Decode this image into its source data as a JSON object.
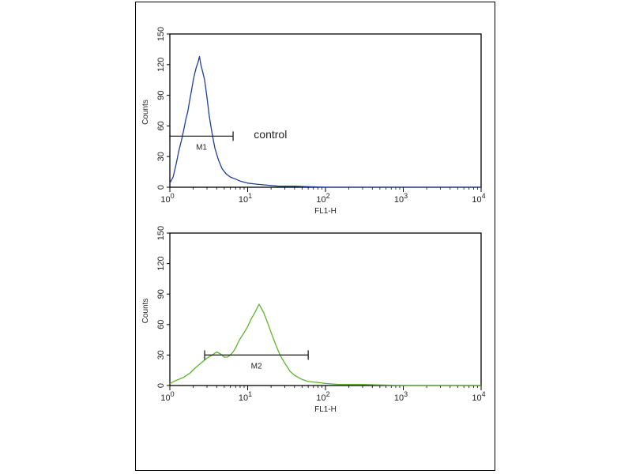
{
  "chart_data": [
    {
      "type": "histogram",
      "panel": "top",
      "xlabel": "FL1-H",
      "ylabel": "Counts",
      "x_scale": "log",
      "xlim": [
        1,
        10000
      ],
      "ylim": [
        0,
        150
      ],
      "x_ticks": [
        {
          "base": "10",
          "exp": "0",
          "value": 1
        },
        {
          "base": "10",
          "exp": "1",
          "value": 10
        },
        {
          "base": "10",
          "exp": "2",
          "value": 100
        },
        {
          "base": "10",
          "exp": "3",
          "value": 1000
        },
        {
          "base": "10",
          "exp": "4",
          "value": 10000
        }
      ],
      "y_ticks": [
        "0",
        "30",
        "60",
        "90",
        "120",
        "150"
      ],
      "series": [
        {
          "color": "#1f3f9a",
          "points": [
            [
              1.0,
              4
            ],
            [
              1.1,
              10
            ],
            [
              1.2,
              22
            ],
            [
              1.3,
              35
            ],
            [
              1.4,
              45
            ],
            [
              1.5,
              55
            ],
            [
              1.6,
              66
            ],
            [
              1.7,
              74
            ],
            [
              1.8,
              85
            ],
            [
              1.9,
              95
            ],
            [
              2.0,
              105
            ],
            [
              2.1,
              112
            ],
            [
              2.2,
              118
            ],
            [
              2.3,
              122
            ],
            [
              2.4,
              128
            ],
            [
              2.5,
              120
            ],
            [
              2.6,
              115
            ],
            [
              2.8,
              105
            ],
            [
              3.0,
              88
            ],
            [
              3.2,
              70
            ],
            [
              3.5,
              52
            ],
            [
              3.8,
              38
            ],
            [
              4.2,
              27
            ],
            [
              4.7,
              18
            ],
            [
              5.3,
              13
            ],
            [
              6.0,
              10
            ],
            [
              7.0,
              8
            ],
            [
              8.0,
              6
            ],
            [
              10,
              4
            ],
            [
              13,
              3
            ],
            [
              18,
              2
            ],
            [
              25,
              1
            ],
            [
              40,
              1
            ],
            [
              100,
              0
            ],
            [
              1000,
              0
            ],
            [
              10000,
              0
            ]
          ]
        }
      ],
      "gate": {
        "label": "M1",
        "x1": 1,
        "x2": 6.5,
        "y": 50
      },
      "annotation": {
        "text": "control",
        "x": 12,
        "y": 48
      }
    },
    {
      "type": "histogram",
      "panel": "bottom",
      "xlabel": "FL1-H",
      "ylabel": "Counts",
      "x_scale": "log",
      "xlim": [
        1,
        10000
      ],
      "ylim": [
        0,
        150
      ],
      "x_ticks": [
        {
          "base": "10",
          "exp": "0",
          "value": 1
        },
        {
          "base": "10",
          "exp": "1",
          "value": 10
        },
        {
          "base": "10",
          "exp": "2",
          "value": 100
        },
        {
          "base": "10",
          "exp": "3",
          "value": 1000
        },
        {
          "base": "10",
          "exp": "4",
          "value": 10000
        }
      ],
      "y_ticks": [
        "0",
        "30",
        "60",
        "90",
        "120",
        "150"
      ],
      "series": [
        {
          "color": "#5ab52a",
          "points": [
            [
              1.0,
              2
            ],
            [
              1.2,
              5
            ],
            [
              1.5,
              8
            ],
            [
              1.8,
              12
            ],
            [
              2.1,
              17
            ],
            [
              2.5,
              22
            ],
            [
              3.0,
              27
            ],
            [
              3.5,
              30
            ],
            [
              4.0,
              33
            ],
            [
              4.5,
              31
            ],
            [
              5.0,
              28
            ],
            [
              5.5,
              28
            ],
            [
              6.0,
              30
            ],
            [
              6.5,
              33
            ],
            [
              7.0,
              37
            ],
            [
              7.5,
              42
            ],
            [
              8.0,
              46
            ],
            [
              9.0,
              52
            ],
            [
              10,
              58
            ],
            [
              11,
              65
            ],
            [
              12,
              70
            ],
            [
              13,
              75
            ],
            [
              14,
              80
            ],
            [
              15,
              76
            ],
            [
              16,
              72
            ],
            [
              18,
              62
            ],
            [
              20,
              52
            ],
            [
              23,
              40
            ],
            [
              26,
              30
            ],
            [
              30,
              22
            ],
            [
              35,
              14
            ],
            [
              40,
              10
            ],
            [
              50,
              6
            ],
            [
              60,
              4
            ],
            [
              80,
              3
            ],
            [
              100,
              2
            ],
            [
              150,
              1
            ],
            [
              300,
              1
            ],
            [
              1000,
              0
            ],
            [
              10000,
              0
            ]
          ]
        }
      ],
      "gate": {
        "label": "M2",
        "x1": 2.8,
        "x2": 60,
        "y": 30
      }
    }
  ]
}
